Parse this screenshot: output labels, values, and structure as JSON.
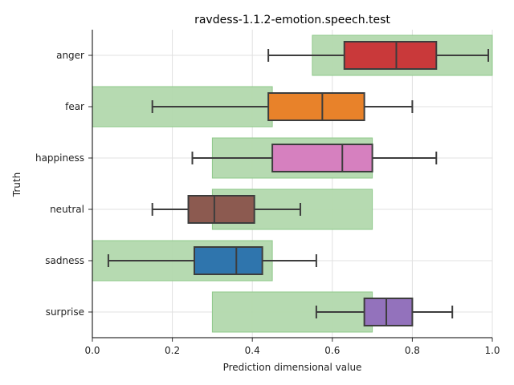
{
  "chart_data": {
    "type": "box",
    "orientation": "horizontal",
    "title": "ravdess-1.1.2-emotion.speech.test",
    "xlabel": "Prediction dimensional value",
    "ylabel": "Truth",
    "xlim": [
      0,
      1
    ],
    "x_ticks": [
      "0.0",
      "0.2",
      "0.4",
      "0.6",
      "0.8",
      "1.0"
    ],
    "grid": true,
    "range_color": "#b2d8ad",
    "categories": [
      "anger",
      "fear",
      "happiness",
      "neutral",
      "sadness",
      "surprise"
    ],
    "expected_ranges": [
      {
        "category": "anger",
        "low": 0.55,
        "high": 1.0
      },
      {
        "category": "fear",
        "low": 0.0,
        "high": 0.45
      },
      {
        "category": "happiness",
        "low": 0.3,
        "high": 0.7
      },
      {
        "category": "neutral",
        "low": 0.3,
        "high": 0.7
      },
      {
        "category": "sadness",
        "low": 0.0,
        "high": 0.45
      },
      {
        "category": "surprise",
        "low": 0.3,
        "high": 0.7
      }
    ],
    "boxes": [
      {
        "category": "anger",
        "whisker_low": 0.44,
        "q1": 0.63,
        "median": 0.76,
        "q3": 0.86,
        "whisker_high": 0.99,
        "color": "#c9393a"
      },
      {
        "category": "fear",
        "whisker_low": 0.15,
        "q1": 0.44,
        "median": 0.575,
        "q3": 0.68,
        "whisker_high": 0.8,
        "color": "#e8822a"
      },
      {
        "category": "happiness",
        "whisker_low": 0.25,
        "q1": 0.45,
        "median": 0.625,
        "q3": 0.7,
        "whisker_high": 0.86,
        "color": "#d680bf"
      },
      {
        "category": "neutral",
        "whisker_low": 0.15,
        "q1": 0.24,
        "median": 0.305,
        "q3": 0.405,
        "whisker_high": 0.52,
        "color": "#8c5a50"
      },
      {
        "category": "sadness",
        "whisker_low": 0.04,
        "q1": 0.255,
        "median": 0.36,
        "q3": 0.425,
        "whisker_high": 0.56,
        "color": "#2f75ad"
      },
      {
        "category": "surprise",
        "whisker_low": 0.56,
        "q1": 0.68,
        "median": 0.735,
        "q3": 0.8,
        "whisker_high": 0.9,
        "color": "#9372bc"
      }
    ]
  }
}
